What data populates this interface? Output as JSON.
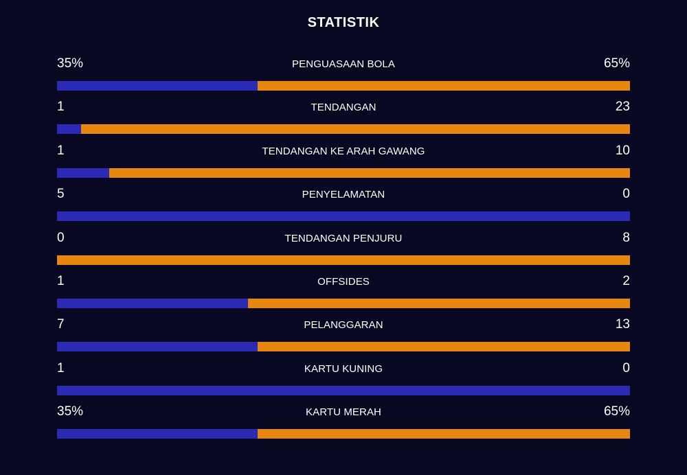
{
  "title": "STATISTIK",
  "colors": {
    "background": "#080822",
    "home": "#2a2ab4",
    "away": "#e8870f",
    "text": "#ffffff"
  },
  "stats": [
    {
      "label": "PENGUASAAN BOLA",
      "left": "35%",
      "right": "65%",
      "left_share": 0.35
    },
    {
      "label": "TENDANGAN",
      "left": "1",
      "right": "23",
      "left_share": 0.0417
    },
    {
      "label": "TENDANGAN KE ARAH GAWANG",
      "left": "1",
      "right": "10",
      "left_share": 0.0909
    },
    {
      "label": "PENYELAMATAN",
      "left": "5",
      "right": "0",
      "left_share": 1.0
    },
    {
      "label": "TENDANGAN PENJURU",
      "left": "0",
      "right": "8",
      "left_share": 0.0
    },
    {
      "label": "OFFSIDES",
      "left": "1",
      "right": "2",
      "left_share": 0.3333
    },
    {
      "label": "PELANGGARAN",
      "left": "7",
      "right": "13",
      "left_share": 0.35
    },
    {
      "label": "KARTU KUNING",
      "left": "1",
      "right": "0",
      "left_share": 1.0
    },
    {
      "label": "KARTU MERAH",
      "left": "35%",
      "right": "65%",
      "left_share": 0.35
    }
  ]
}
